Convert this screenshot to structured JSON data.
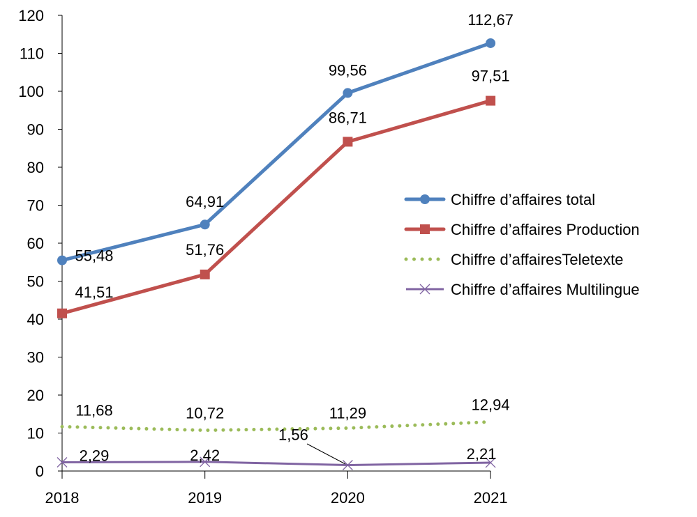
{
  "chart_data": {
    "type": "line",
    "title": "",
    "xlabel": "",
    "ylabel": "",
    "categories": [
      "2018",
      "2019",
      "2020",
      "2021"
    ],
    "ylim": [
      0,
      120
    ],
    "yticks": [
      0,
      10,
      20,
      30,
      40,
      50,
      60,
      70,
      80,
      90,
      100,
      110,
      120
    ],
    "grid": false,
    "legend_position": "right",
    "series": [
      {
        "name": "Chiffre d’affaires total",
        "values": [
          55.48,
          64.91,
          99.56,
          112.67
        ],
        "labels": [
          "55,48",
          "64,91",
          "99,56",
          "112,67"
        ],
        "color": "#4F81BD",
        "marker": "circle",
        "style": "solid"
      },
      {
        "name": "Chiffre d’affaires Production",
        "values": [
          41.51,
          51.76,
          86.71,
          97.51
        ],
        "labels": [
          "41,51",
          "51,76",
          "86,71",
          "97,51"
        ],
        "color": "#C0504D",
        "marker": "square",
        "style": "solid"
      },
      {
        "name": "Chiffre d’affairesTeletexte",
        "values": [
          11.68,
          10.72,
          11.29,
          12.94
        ],
        "labels": [
          "11,68",
          "10,72",
          "11,29",
          "12,94"
        ],
        "color": "#9BBB59",
        "marker": "none",
        "style": "dotted"
      },
      {
        "name": "Chiffre d’affaires Multilingue",
        "values": [
          2.29,
          2.42,
          1.56,
          2.21
        ],
        "labels": [
          "2,29",
          "2,42",
          "1,56",
          "2,21"
        ],
        "color": "#8064A2",
        "marker": "x",
        "style": "solid"
      }
    ]
  }
}
